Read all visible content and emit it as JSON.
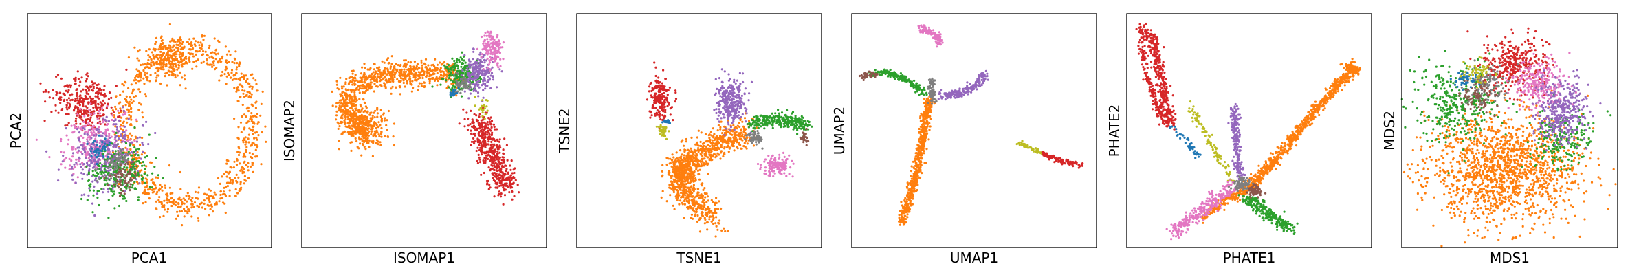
{
  "colors": {
    "blue": "#1f77b4",
    "orange": "#ff7f0e",
    "green": "#2ca02c",
    "red": "#d62728",
    "purple": "#9467bd",
    "brown": "#8c564b",
    "pink": "#e377c2",
    "gray": "#7f7f7f",
    "olive": "#bcbd22"
  },
  "chart_data": [
    {
      "type": "scatter",
      "xlabel": "PCA1",
      "ylabel": "PCA2",
      "grid": false,
      "xlim": [
        0,
        1
      ],
      "ylim": [
        0,
        1
      ],
      "clusters": [
        {
          "color": "orange",
          "shape": "ring",
          "cx": 0.66,
          "cy": 0.52,
          "rx": 0.26,
          "ry": 0.34,
          "thickness": 0.1,
          "n": 900
        },
        {
          "color": "orange",
          "shape": "blob",
          "cx": 0.58,
          "cy": 0.8,
          "rx": 0.1,
          "ry": 0.08,
          "angle": 0,
          "n": 200
        },
        {
          "color": "red",
          "shape": "blob",
          "cx": 0.24,
          "cy": 0.62,
          "rx": 0.13,
          "ry": 0.11,
          "angle": -20,
          "n": 320
        },
        {
          "color": "pink",
          "shape": "blob",
          "cx": 0.28,
          "cy": 0.45,
          "rx": 0.12,
          "ry": 0.14,
          "angle": -40,
          "n": 260
        },
        {
          "color": "purple",
          "shape": "blob",
          "cx": 0.32,
          "cy": 0.4,
          "rx": 0.13,
          "ry": 0.16,
          "angle": -40,
          "n": 320
        },
        {
          "color": "green",
          "shape": "blob",
          "cx": 0.38,
          "cy": 0.32,
          "rx": 0.11,
          "ry": 0.14,
          "angle": -35,
          "n": 260
        },
        {
          "color": "gray",
          "shape": "blob",
          "cx": 0.36,
          "cy": 0.36,
          "rx": 0.06,
          "ry": 0.08,
          "angle": -35,
          "n": 80
        },
        {
          "color": "brown",
          "shape": "blob",
          "cx": 0.4,
          "cy": 0.3,
          "rx": 0.05,
          "ry": 0.06,
          "angle": -35,
          "n": 60
        },
        {
          "color": "blue",
          "shape": "blob",
          "cx": 0.3,
          "cy": 0.42,
          "rx": 0.05,
          "ry": 0.06,
          "angle": -35,
          "n": 40
        }
      ]
    },
    {
      "type": "scatter",
      "xlabel": "ISOMAP1",
      "ylabel": "ISOMAP2",
      "grid": false,
      "xlim": [
        0,
        1
      ],
      "ylim": [
        0,
        1
      ],
      "clusters": [
        {
          "color": "orange",
          "shape": "curve",
          "points": [
            [
              0.26,
              0.46
            ],
            [
              0.18,
              0.6
            ],
            [
              0.22,
              0.7
            ],
            [
              0.34,
              0.74
            ],
            [
              0.46,
              0.74
            ],
            [
              0.56,
              0.75
            ],
            [
              0.64,
              0.72
            ]
          ],
          "spread": 0.045,
          "n": 900
        },
        {
          "color": "orange",
          "shape": "blob",
          "cx": 0.26,
          "cy": 0.52,
          "rx": 0.09,
          "ry": 0.08,
          "angle": 0,
          "n": 250
        },
        {
          "color": "green",
          "shape": "blob",
          "cx": 0.66,
          "cy": 0.74,
          "rx": 0.07,
          "ry": 0.07,
          "angle": 0,
          "n": 220
        },
        {
          "color": "purple",
          "shape": "blob",
          "cx": 0.72,
          "cy": 0.74,
          "rx": 0.06,
          "ry": 0.08,
          "angle": 0,
          "n": 200
        },
        {
          "color": "pink",
          "shape": "blob",
          "cx": 0.78,
          "cy": 0.85,
          "rx": 0.04,
          "ry": 0.08,
          "angle": 10,
          "n": 150
        },
        {
          "color": "red",
          "shape": "curve",
          "points": [
            [
              0.72,
              0.55
            ],
            [
              0.76,
              0.45
            ],
            [
              0.8,
              0.35
            ],
            [
              0.84,
              0.25
            ]
          ],
          "spread": 0.045,
          "n": 500
        },
        {
          "color": "gray",
          "shape": "blob",
          "cx": 0.66,
          "cy": 0.7,
          "rx": 0.03,
          "ry": 0.04,
          "angle": 0,
          "n": 60
        },
        {
          "color": "blue",
          "shape": "blob",
          "cx": 0.62,
          "cy": 0.66,
          "rx": 0.02,
          "ry": 0.02,
          "angle": 0,
          "n": 20
        },
        {
          "color": "olive",
          "shape": "blob",
          "cx": 0.74,
          "cy": 0.6,
          "rx": 0.02,
          "ry": 0.04,
          "angle": 0,
          "n": 20
        }
      ]
    },
    {
      "type": "scatter",
      "xlabel": "TSNE1",
      "ylabel": "TSNE2",
      "grid": false,
      "xlim": [
        0,
        1
      ],
      "ylim": [
        0,
        1
      ],
      "clusters": [
        {
          "color": "orange",
          "shape": "curve",
          "points": [
            [
              0.7,
              0.5
            ],
            [
              0.6,
              0.46
            ],
            [
              0.5,
              0.4
            ],
            [
              0.42,
              0.34
            ],
            [
              0.42,
              0.25
            ],
            [
              0.5,
              0.18
            ],
            [
              0.56,
              0.12
            ]
          ],
          "spread": 0.05,
          "n": 900
        },
        {
          "color": "orange",
          "shape": "blob",
          "cx": 0.44,
          "cy": 0.32,
          "rx": 0.06,
          "ry": 0.07,
          "angle": 0,
          "n": 200
        },
        {
          "color": "red",
          "shape": "blob",
          "cx": 0.34,
          "cy": 0.64,
          "rx": 0.04,
          "ry": 0.09,
          "angle": 0,
          "n": 200
        },
        {
          "color": "olive",
          "shape": "blob",
          "cx": 0.35,
          "cy": 0.5,
          "rx": 0.02,
          "ry": 0.03,
          "angle": 0,
          "n": 40
        },
        {
          "color": "blue",
          "shape": "blob",
          "cx": 0.37,
          "cy": 0.54,
          "rx": 0.015,
          "ry": 0.01,
          "angle": 0,
          "n": 15
        },
        {
          "color": "purple",
          "shape": "blob",
          "cx": 0.63,
          "cy": 0.62,
          "rx": 0.06,
          "ry": 0.09,
          "angle": 0,
          "n": 300
        },
        {
          "color": "green",
          "shape": "curve",
          "points": [
            [
              0.72,
              0.53
            ],
            [
              0.8,
              0.55
            ],
            [
              0.88,
              0.54
            ],
            [
              0.94,
              0.52
            ]
          ],
          "spread": 0.025,
          "n": 300
        },
        {
          "color": "gray",
          "shape": "blob",
          "cx": 0.73,
          "cy": 0.47,
          "rx": 0.03,
          "ry": 0.03,
          "angle": 0,
          "n": 60
        },
        {
          "color": "brown",
          "shape": "blob",
          "cx": 0.93,
          "cy": 0.47,
          "rx": 0.015,
          "ry": 0.03,
          "angle": 0,
          "n": 30
        },
        {
          "color": "pink",
          "shape": "blob",
          "cx": 0.82,
          "cy": 0.35,
          "rx": 0.06,
          "ry": 0.04,
          "angle": 0,
          "n": 150
        }
      ]
    },
    {
      "type": "scatter",
      "xlabel": "UMAP1",
      "ylabel": "UMAP2",
      "grid": false,
      "xlim": [
        0,
        1
      ],
      "ylim": [
        0,
        1
      ],
      "clusters": [
        {
          "color": "orange",
          "shape": "curve",
          "points": [
            [
              0.32,
              0.64
            ],
            [
              0.3,
              0.54
            ],
            [
              0.28,
              0.42
            ],
            [
              0.26,
              0.3
            ],
            [
              0.22,
              0.16
            ],
            [
              0.2,
              0.1
            ]
          ],
          "spread": 0.016,
          "n": 600
        },
        {
          "color": "pink",
          "shape": "curve",
          "points": [
            [
              0.28,
              0.94
            ],
            [
              0.32,
              0.92
            ],
            [
              0.36,
              0.9
            ],
            [
              0.35,
              0.87
            ]
          ],
          "spread": 0.012,
          "n": 120
        },
        {
          "color": "green",
          "shape": "curve",
          "points": [
            [
              0.08,
              0.74
            ],
            [
              0.14,
              0.75
            ],
            [
              0.22,
              0.72
            ],
            [
              0.3,
              0.66
            ]
          ],
          "spread": 0.012,
          "n": 200
        },
        {
          "color": "brown",
          "shape": "curve",
          "points": [
            [
              0.04,
              0.73
            ],
            [
              0.07,
              0.74
            ],
            [
              0.1,
              0.74
            ]
          ],
          "spread": 0.01,
          "n": 40
        },
        {
          "color": "gray",
          "shape": "curve",
          "points": [
            [
              0.33,
              0.72
            ],
            [
              0.33,
              0.66
            ],
            [
              0.33,
              0.62
            ]
          ],
          "spread": 0.012,
          "n": 70
        },
        {
          "color": "purple",
          "shape": "curve",
          "points": [
            [
              0.36,
              0.65
            ],
            [
              0.44,
              0.66
            ],
            [
              0.52,
              0.7
            ],
            [
              0.54,
              0.75
            ]
          ],
          "spread": 0.016,
          "n": 200
        },
        {
          "color": "olive",
          "shape": "curve",
          "points": [
            [
              0.68,
              0.45
            ],
            [
              0.74,
              0.42
            ],
            [
              0.78,
              0.4
            ]
          ],
          "spread": 0.008,
          "n": 50
        },
        {
          "color": "red",
          "shape": "curve",
          "points": [
            [
              0.78,
              0.4
            ],
            [
              0.86,
              0.37
            ],
            [
              0.94,
              0.35
            ]
          ],
          "spread": 0.009,
          "n": 110
        }
      ]
    },
    {
      "type": "scatter",
      "xlabel": "PHATE1",
      "ylabel": "PHATE2",
      "grid": false,
      "xlim": [
        0,
        1
      ],
      "ylim": [
        0,
        1
      ],
      "clusters": [
        {
          "color": "orange",
          "shape": "curve",
          "points": [
            [
              0.48,
              0.24
            ],
            [
              0.56,
              0.32
            ],
            [
              0.64,
              0.42
            ],
            [
              0.72,
              0.52
            ],
            [
              0.8,
              0.62
            ],
            [
              0.88,
              0.72
            ],
            [
              0.94,
              0.76
            ],
            [
              0.9,
              0.78
            ]
          ],
          "spread": 0.018,
          "n": 800
        },
        {
          "color": "orange",
          "shape": "curve",
          "points": [
            [
              0.48,
              0.24
            ],
            [
              0.4,
              0.2
            ],
            [
              0.3,
              0.12
            ]
          ],
          "spread": 0.015,
          "n": 150
        },
        {
          "color": "red",
          "shape": "curve",
          "points": [
            [
              0.06,
              0.94
            ],
            [
              0.1,
              0.9
            ],
            [
              0.12,
              0.82
            ],
            [
              0.14,
              0.72
            ],
            [
              0.16,
              0.6
            ],
            [
              0.18,
              0.52
            ]
          ],
          "spread": 0.02,
          "n": 350
        },
        {
          "color": "red",
          "shape": "curve",
          "points": [
            [
              0.06,
              0.94
            ],
            [
              0.06,
              0.86
            ],
            [
              0.08,
              0.74
            ],
            [
              0.12,
              0.62
            ],
            [
              0.16,
              0.52
            ]
          ],
          "spread": 0.012,
          "n": 150
        },
        {
          "color": "olive",
          "shape": "curve",
          "points": [
            [
              0.26,
              0.6
            ],
            [
              0.32,
              0.48
            ],
            [
              0.4,
              0.34
            ],
            [
              0.44,
              0.28
            ]
          ],
          "spread": 0.015,
          "n": 100
        },
        {
          "color": "blue",
          "shape": "curve",
          "points": [
            [
              0.18,
              0.52
            ],
            [
              0.24,
              0.46
            ],
            [
              0.3,
              0.38
            ]
          ],
          "spread": 0.012,
          "n": 40
        },
        {
          "color": "purple",
          "shape": "curve",
          "points": [
            [
              0.44,
              0.6
            ],
            [
              0.44,
              0.52
            ],
            [
              0.45,
              0.42
            ],
            [
              0.46,
              0.3
            ]
          ],
          "spread": 0.015,
          "n": 200
        },
        {
          "color": "pink",
          "shape": "curve",
          "points": [
            [
              0.18,
              0.06
            ],
            [
              0.26,
              0.12
            ],
            [
              0.36,
              0.2
            ],
            [
              0.44,
              0.26
            ]
          ],
          "spread": 0.025,
          "n": 300
        },
        {
          "color": "green",
          "shape": "curve",
          "points": [
            [
              0.48,
              0.22
            ],
            [
              0.56,
              0.16
            ],
            [
              0.64,
              0.1
            ],
            [
              0.68,
              0.08
            ]
          ],
          "spread": 0.022,
          "n": 250
        },
        {
          "color": "gray",
          "shape": "blob",
          "cx": 0.47,
          "cy": 0.27,
          "rx": 0.04,
          "ry": 0.03,
          "angle": 0,
          "n": 80
        },
        {
          "color": "brown",
          "shape": "blob",
          "cx": 0.52,
          "cy": 0.24,
          "rx": 0.03,
          "ry": 0.025,
          "angle": 0,
          "n": 60
        }
      ]
    },
    {
      "type": "scatter",
      "xlabel": "MDS1",
      "ylabel": "MDS2",
      "grid": false,
      "xlim": [
        0,
        1
      ],
      "ylim": [
        0,
        1
      ],
      "clusters": [
        {
          "color": "orange",
          "shape": "blob",
          "cx": 0.46,
          "cy": 0.34,
          "rx": 0.36,
          "ry": 0.24,
          "angle": 0,
          "n": 1500
        },
        {
          "color": "green",
          "shape": "blob",
          "cx": 0.26,
          "cy": 0.62,
          "rx": 0.18,
          "ry": 0.17,
          "angle": 0,
          "n": 350
        },
        {
          "color": "green",
          "shape": "blob",
          "cx": 0.74,
          "cy": 0.46,
          "rx": 0.14,
          "ry": 0.14,
          "angle": 0,
          "n": 200
        },
        {
          "color": "red",
          "shape": "blob",
          "cx": 0.52,
          "cy": 0.78,
          "rx": 0.16,
          "ry": 0.11,
          "angle": 0,
          "n": 350
        },
        {
          "color": "pink",
          "shape": "blob",
          "cx": 0.64,
          "cy": 0.7,
          "rx": 0.12,
          "ry": 0.1,
          "angle": 0,
          "n": 250
        },
        {
          "color": "purple",
          "shape": "blob",
          "cx": 0.74,
          "cy": 0.58,
          "rx": 0.12,
          "ry": 0.15,
          "angle": 0,
          "n": 350
        },
        {
          "color": "gray",
          "shape": "blob",
          "cx": 0.4,
          "cy": 0.7,
          "rx": 0.1,
          "ry": 0.08,
          "angle": 0,
          "n": 100
        },
        {
          "color": "brown",
          "shape": "blob",
          "cx": 0.35,
          "cy": 0.66,
          "rx": 0.08,
          "ry": 0.08,
          "angle": 0,
          "n": 80
        },
        {
          "color": "blue",
          "shape": "blob",
          "cx": 0.3,
          "cy": 0.72,
          "rx": 0.06,
          "ry": 0.05,
          "angle": 0,
          "n": 40
        },
        {
          "color": "olive",
          "shape": "blob",
          "cx": 0.36,
          "cy": 0.76,
          "rx": 0.07,
          "ry": 0.05,
          "angle": 0,
          "n": 50
        }
      ]
    }
  ]
}
